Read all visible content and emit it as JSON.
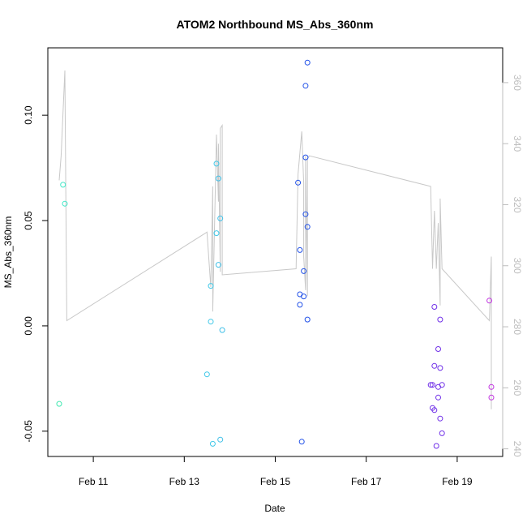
{
  "chart_data": {
    "type": "scatter",
    "title": "ATOM2 Northbound MS_Abs_360nm",
    "xlabel": "Date",
    "ylabel": "MS_Abs_360nm",
    "y2label": "",
    "x_ticks": [
      "Feb 11",
      "Feb 13",
      "Feb 15",
      "Feb 17",
      "Feb 19"
    ],
    "y_ticks": [
      "-0.05",
      "0.00",
      "0.05",
      "0.10"
    ],
    "y2_ticks": [
      "240",
      "260",
      "280",
      "300",
      "320",
      "340",
      "360"
    ],
    "axis_color_right": "#bdbdbd",
    "line_color": "#c8c8c8",
    "xlim": [
      "Feb 10 00:00",
      "Feb 20 00:00"
    ],
    "ylim": [
      -0.062,
      0.132
    ],
    "y2lim": [
      237.5,
      371.4
    ],
    "grid": false,
    "points": [
      {
        "x": "Feb 10 06:00",
        "y": -0.037,
        "color": "#40e8b0"
      },
      {
        "x": "Feb 10 08:00",
        "y": 0.067,
        "color": "#40e8c8"
      },
      {
        "x": "Feb 10 09:00",
        "y": 0.058,
        "color": "#40e8c8"
      },
      {
        "x": "Feb 13 12:00",
        "y": -0.023,
        "color": "#40c8e8"
      },
      {
        "x": "Feb 13 14:00",
        "y": 0.019,
        "color": "#40c8e8"
      },
      {
        "x": "Feb 13 14:00",
        "y": 0.002,
        "color": "#40c8e8"
      },
      {
        "x": "Feb 13 15:00",
        "y": -0.056,
        "color": "#40c8e8"
      },
      {
        "x": "Feb 13 17:00",
        "y": 0.077,
        "color": "#40c8e8"
      },
      {
        "x": "Feb 13 17:00",
        "y": 0.044,
        "color": "#40c8e8"
      },
      {
        "x": "Feb 13 18:00",
        "y": 0.07,
        "color": "#40c0e8"
      },
      {
        "x": "Feb 13 18:00",
        "y": 0.029,
        "color": "#40c0e8"
      },
      {
        "x": "Feb 13 19:00",
        "y": 0.051,
        "color": "#40c0e8"
      },
      {
        "x": "Feb 13 19:00",
        "y": -0.054,
        "color": "#40c0e8"
      },
      {
        "x": "Feb 13 20:00",
        "y": -0.002,
        "color": "#40c0e8"
      },
      {
        "x": "Feb 15 12:00",
        "y": 0.068,
        "color": "#2050e8"
      },
      {
        "x": "Feb 15 13:00",
        "y": 0.015,
        "color": "#2050e8"
      },
      {
        "x": "Feb 15 13:00",
        "y": 0.036,
        "color": "#2050e8"
      },
      {
        "x": "Feb 15 13:00",
        "y": 0.01,
        "color": "#2050e8"
      },
      {
        "x": "Feb 15 14:00",
        "y": -0.055,
        "color": "#2050e8"
      },
      {
        "x": "Feb 15 15:00",
        "y": 0.026,
        "color": "#2050e8"
      },
      {
        "x": "Feb 15 15:00",
        "y": 0.014,
        "color": "#2050e8"
      },
      {
        "x": "Feb 15 16:00",
        "y": 0.08,
        "color": "#2050e8"
      },
      {
        "x": "Feb 15 16:00",
        "y": 0.114,
        "color": "#2050e8"
      },
      {
        "x": "Feb 15 16:00",
        "y": 0.053,
        "color": "#2050e8"
      },
      {
        "x": "Feb 15 17:00",
        "y": 0.047,
        "color": "#2050e8"
      },
      {
        "x": "Feb 15 17:00",
        "y": 0.003,
        "color": "#2050e8"
      },
      {
        "x": "Feb 15 17:00",
        "y": 0.125,
        "color": "#2050e8"
      },
      {
        "x": "Feb 18 10:00",
        "y": -0.028,
        "color": "#7030e8"
      },
      {
        "x": "Feb 18 11:00",
        "y": -0.028,
        "color": "#7030e8"
      },
      {
        "x": "Feb 18 11:00",
        "y": -0.039,
        "color": "#7030e8"
      },
      {
        "x": "Feb 18 12:00",
        "y": 0.009,
        "color": "#7030e8"
      },
      {
        "x": "Feb 18 12:00",
        "y": -0.019,
        "color": "#7030e8"
      },
      {
        "x": "Feb 18 12:00",
        "y": -0.04,
        "color": "#7030e8"
      },
      {
        "x": "Feb 18 13:00",
        "y": -0.057,
        "color": "#7030e8"
      },
      {
        "x": "Feb 18 14:00",
        "y": -0.034,
        "color": "#7030e8"
      },
      {
        "x": "Feb 18 14:00",
        "y": -0.011,
        "color": "#7030e8"
      },
      {
        "x": "Feb 18 14:00",
        "y": -0.029,
        "color": "#7030e8"
      },
      {
        "x": "Feb 18 15:00",
        "y": 0.003,
        "color": "#7030e8"
      },
      {
        "x": "Feb 18 15:00",
        "y": -0.02,
        "color": "#7030e8"
      },
      {
        "x": "Feb 18 15:00",
        "y": -0.044,
        "color": "#7030e8"
      },
      {
        "x": "Feb 18 16:00",
        "y": -0.028,
        "color": "#7030e8"
      },
      {
        "x": "Feb 18 16:00",
        "y": -0.051,
        "color": "#7030e8"
      },
      {
        "x": "Feb 19 17:00",
        "y": 0.012,
        "color": "#c030e0"
      },
      {
        "x": "Feb 19 18:00",
        "y": -0.029,
        "color": "#c030e0"
      },
      {
        "x": "Feb 19 18:00",
        "y": -0.034,
        "color": "#c030e0"
      }
    ],
    "line": [
      {
        "x": "Feb 10 06:00",
        "y2": 328
      },
      {
        "x": "Feb 10 07:00",
        "y2": 336
      },
      {
        "x": "Feb 10 09:00",
        "y2": 364
      },
      {
        "x": "Feb 10 10:00",
        "y2": 282
      },
      {
        "x": "Feb 13 12:00",
        "y2": 311
      },
      {
        "x": "Feb 13 14:00",
        "y2": 293
      },
      {
        "x": "Feb 13 15:00",
        "y2": 326
      },
      {
        "x": "Feb 13 15:00",
        "y2": 285
      },
      {
        "x": "Feb 13 17:00",
        "y2": 343
      },
      {
        "x": "Feb 13 18:00",
        "y2": 321
      },
      {
        "x": "Feb 13 18:00",
        "y2": 340
      },
      {
        "x": "Feb 13 19:00",
        "y2": 298
      },
      {
        "x": "Feb 13 19:00",
        "y2": 345
      },
      {
        "x": "Feb 13 20:00",
        "y2": 346
      },
      {
        "x": "Feb 13 20:00",
        "y2": 297
      },
      {
        "x": "Feb 15 11:00",
        "y2": 299
      },
      {
        "x": "Feb 15 12:00",
        "y2": 330
      },
      {
        "x": "Feb 15 14:00",
        "y2": 344
      },
      {
        "x": "Feb 15 15:00",
        "y2": 327
      },
      {
        "x": "Feb 15 15:00",
        "y2": 303
      },
      {
        "x": "Feb 15 16:00",
        "y2": 292
      },
      {
        "x": "Feb 15 16:00",
        "y2": 336
      },
      {
        "x": "Feb 15 17:00",
        "y2": 290
      },
      {
        "x": "Feb 15 17:00",
        "y2": 335
      },
      {
        "x": "Feb 15 18:00",
        "y2": 336
      },
      {
        "x": "Feb 18 10:00",
        "y2": 326
      },
      {
        "x": "Feb 18 11:00",
        "y2": 299
      },
      {
        "x": "Feb 18 12:00",
        "y2": 318
      },
      {
        "x": "Feb 18 13:00",
        "y2": 299
      },
      {
        "x": "Feb 18 14:00",
        "y2": 314
      },
      {
        "x": "Feb 18 15:00",
        "y2": 287
      },
      {
        "x": "Feb 18 15:00",
        "y2": 322
      },
      {
        "x": "Feb 18 16:00",
        "y2": 299
      },
      {
        "x": "Feb 19 17:00",
        "y2": 282
      },
      {
        "x": "Feb 19 18:00",
        "y2": 303
      },
      {
        "x": "Feb 19 18:00",
        "y2": 253
      }
    ]
  }
}
